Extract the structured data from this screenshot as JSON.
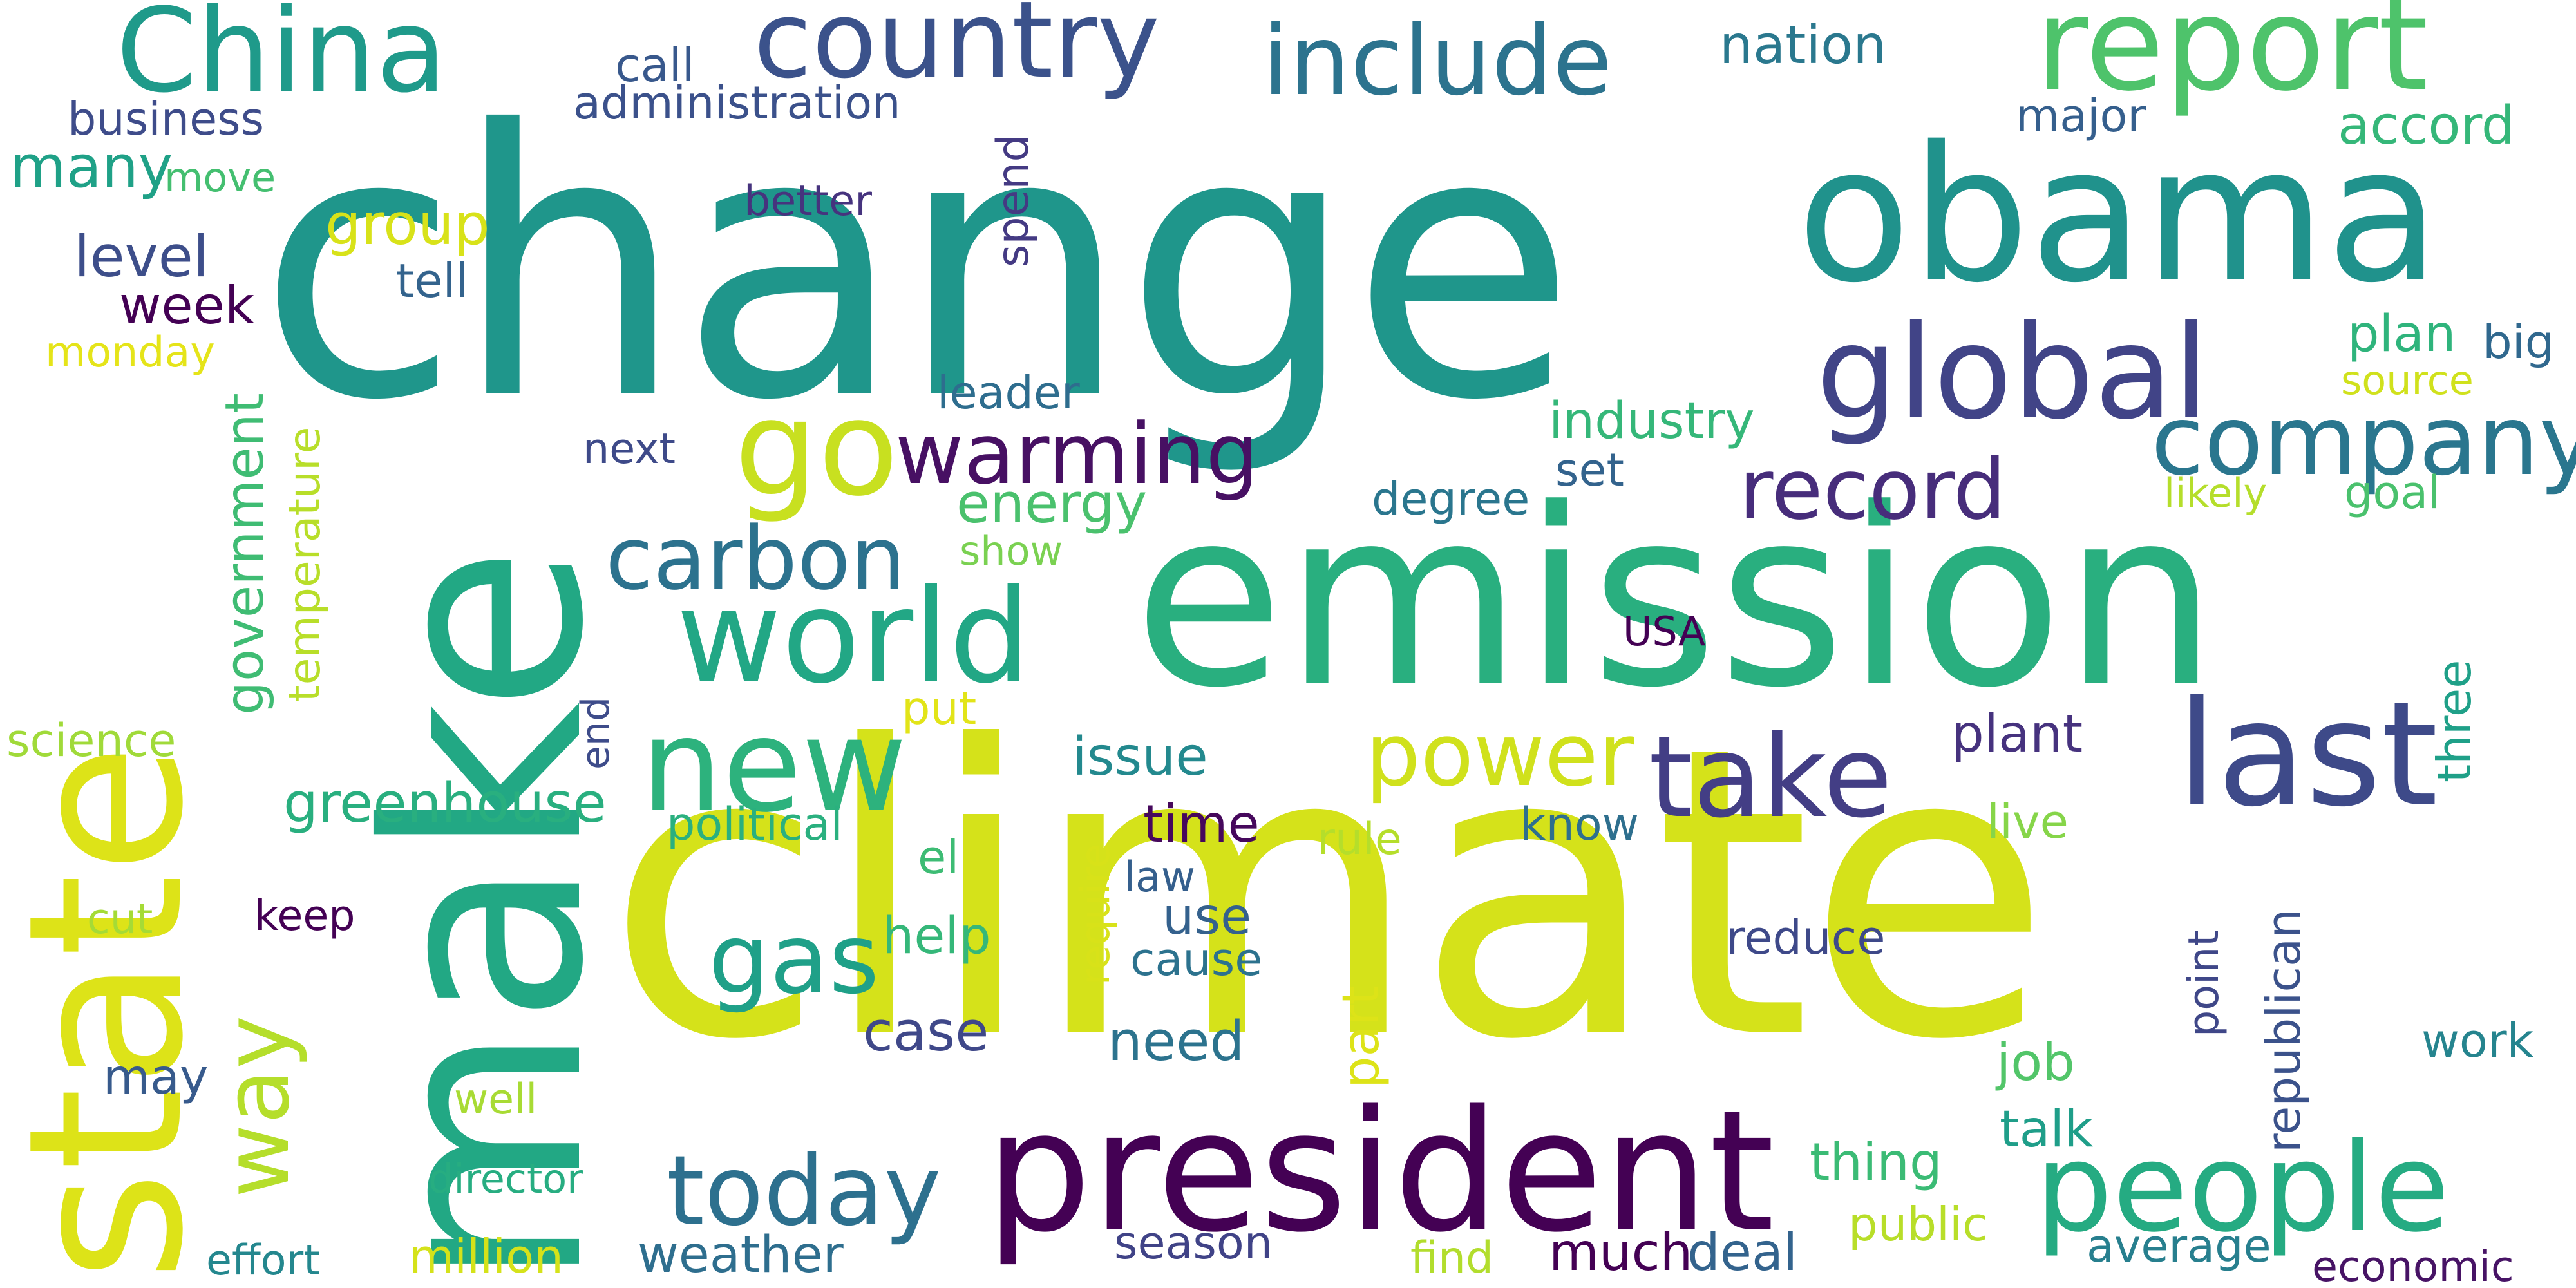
{
  "words": [
    {
      "text": "change",
      "color": "#1f968b"
    },
    {
      "text": "climate",
      "color": "#d5e21a"
    },
    {
      "text": "emission",
      "color": "#29af7f"
    },
    {
      "text": "make",
      "color": "#22a884"
    },
    {
      "text": "state",
      "color": "#dde318"
    },
    {
      "text": "obama",
      "color": "#20928c"
    },
    {
      "text": "president",
      "color": "#440154"
    },
    {
      "text": "China",
      "color": "#1f9a8a"
    },
    {
      "text": "report",
      "color": "#4ec36b"
    },
    {
      "text": "country",
      "color": "#3b528b"
    },
    {
      "text": "include",
      "color": "#2c738e"
    },
    {
      "text": "global",
      "color": "#414487"
    },
    {
      "text": "company",
      "color": "#2a768e"
    },
    {
      "text": "people",
      "color": "#25ab82"
    },
    {
      "text": "last",
      "color": "#3e4a89"
    },
    {
      "text": "take",
      "color": "#433e85"
    },
    {
      "text": "world",
      "color": "#22a785"
    },
    {
      "text": "new",
      "color": "#2db27d"
    },
    {
      "text": "go",
      "color": "#c8e020"
    },
    {
      "text": "warming",
      "color": "#471063"
    },
    {
      "text": "record",
      "color": "#472d7b"
    },
    {
      "text": "carbon",
      "color": "#2c728e"
    },
    {
      "text": "today",
      "color": "#2d708e"
    },
    {
      "text": "power",
      "color": "#d0e11c"
    },
    {
      "text": "gas",
      "color": "#1fa088"
    },
    {
      "text": "way",
      "color": "#b5de2b"
    },
    {
      "text": "nation",
      "color": "#2a788e"
    },
    {
      "text": "call",
      "color": "#38588c"
    },
    {
      "text": "administration",
      "color": "#3b518b"
    },
    {
      "text": "business",
      "color": "#3e4c8a"
    },
    {
      "text": "major",
      "color": "#355f8d"
    },
    {
      "text": "accord",
      "color": "#35b779"
    },
    {
      "text": "many",
      "color": "#1fa187"
    },
    {
      "text": "move",
      "color": "#44bf70"
    },
    {
      "text": "group",
      "color": "#d8e219"
    },
    {
      "text": "better",
      "color": "#46337e"
    },
    {
      "text": "spend",
      "color": "#443a83"
    },
    {
      "text": "level",
      "color": "#3d4e8a"
    },
    {
      "text": "tell",
      "color": "#33638d"
    },
    {
      "text": "week",
      "color": "#440154"
    },
    {
      "text": "monday",
      "color": "#e5e419"
    },
    {
      "text": "government",
      "color": "#3fbc73"
    },
    {
      "text": "temperature",
      "color": "#b8de29"
    },
    {
      "text": "leader",
      "color": "#2e6d8e"
    },
    {
      "text": "industry",
      "color": "#35b779"
    },
    {
      "text": "plan",
      "color": "#2fb47c"
    },
    {
      "text": "big",
      "color": "#30688e"
    },
    {
      "text": "source",
      "color": "#d0e11c"
    },
    {
      "text": "next",
      "color": "#3e4a89"
    },
    {
      "text": "set",
      "color": "#33638d"
    },
    {
      "text": "degree",
      "color": "#2a768e"
    },
    {
      "text": "energy",
      "color": "#4ac16d"
    },
    {
      "text": "show",
      "color": "#7ad151"
    },
    {
      "text": "likely",
      "color": "#b5de2b"
    },
    {
      "text": "goal",
      "color": "#4ac16d"
    },
    {
      "text": "USA",
      "color": "#440154"
    },
    {
      "text": "three",
      "color": "#1fa088"
    },
    {
      "text": "science",
      "color": "#a0da39"
    },
    {
      "text": "end",
      "color": "#3e4c8a"
    },
    {
      "text": "put",
      "color": "#e2e418"
    },
    {
      "text": "issue",
      "color": "#23898e"
    },
    {
      "text": "plant",
      "color": "#46327e"
    },
    {
      "text": "greenhouse",
      "color": "#29af7f"
    },
    {
      "text": "political",
      "color": "#2ab07f"
    },
    {
      "text": "time",
      "color": "#46085c"
    },
    {
      "text": "know",
      "color": "#2e6f8e"
    },
    {
      "text": "rule",
      "color": "#b5de2b"
    },
    {
      "text": "live",
      "color": "#86d549"
    },
    {
      "text": "el",
      "color": "#3dbc74"
    },
    {
      "text": "law",
      "color": "#355f8d"
    },
    {
      "text": "require",
      "color": "#d8e219"
    },
    {
      "text": "republican",
      "color": "#3b528b"
    },
    {
      "text": "cut",
      "color": "#a5db36"
    },
    {
      "text": "keep",
      "color": "#440154"
    },
    {
      "text": "help",
      "color": "#35b779"
    },
    {
      "text": "use",
      "color": "#34618d"
    },
    {
      "text": "cause",
      "color": "#2c728e"
    },
    {
      "text": "reduce",
      "color": "#3e4989"
    },
    {
      "text": "point",
      "color": "#3f4788"
    },
    {
      "text": "case",
      "color": "#3f4889"
    },
    {
      "text": "need",
      "color": "#2c738e"
    },
    {
      "text": "part",
      "color": "#dde318"
    },
    {
      "text": "work",
      "color": "#25848e"
    },
    {
      "text": "may",
      "color": "#375a8c"
    },
    {
      "text": "job",
      "color": "#52c569"
    },
    {
      "text": "well",
      "color": "#a8db34"
    },
    {
      "text": "talk",
      "color": "#1f9e89"
    },
    {
      "text": "director",
      "color": "#27ad81"
    },
    {
      "text": "thing",
      "color": "#3bbb75"
    },
    {
      "text": "public",
      "color": "#b8de29"
    },
    {
      "text": "average",
      "color": "#277f8e"
    },
    {
      "text": "effort",
      "color": "#24878e"
    },
    {
      "text": "million",
      "color": "#d5e21a"
    },
    {
      "text": "weather",
      "color": "#2e6e8e"
    },
    {
      "text": "season",
      "color": "#404387"
    },
    {
      "text": "find",
      "color": "#b2dd2d"
    },
    {
      "text": "much",
      "color": "#440154"
    },
    {
      "text": "deal",
      "color": "#33638d"
    },
    {
      "text": "economic",
      "color": "#471365"
    }
  ]
}
